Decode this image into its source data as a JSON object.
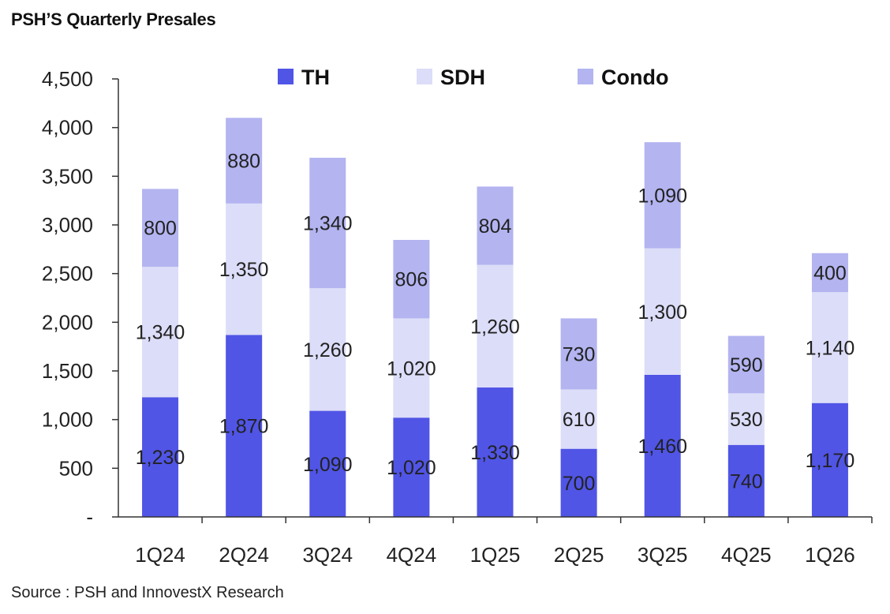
{
  "title": "PSH’S Quarterly Presales",
  "source": "Source : PSH and InnovestX Research",
  "chart_data": {
    "type": "bar",
    "stacked": true,
    "title": "PSH’S Quarterly Presales",
    "xlabel": "",
    "ylabel": "",
    "ylim": [
      0,
      4500
    ],
    "yticks": [
      0,
      500,
      1000,
      1500,
      2000,
      2500,
      3000,
      3500,
      4000,
      4500
    ],
    "ytick_labels": [
      "-",
      "500",
      "1,000",
      "1,500",
      "2,000",
      "2,500",
      "3,000",
      "3,500",
      "4,000",
      "4,500"
    ],
    "grid": false,
    "legend": "top",
    "categories": [
      "1Q24",
      "2Q24",
      "3Q24",
      "4Q24",
      "1Q25",
      "2Q25",
      "3Q25",
      "4Q25",
      "1Q26"
    ],
    "series": [
      {
        "name": "TH",
        "color": "#5055e6",
        "values": [
          1230,
          1870,
          1090,
          1020,
          1330,
          700,
          1460,
          740,
          1170
        ],
        "labels": [
          "1,230",
          "1,870",
          "1,090",
          "1,020",
          "1,330",
          "700",
          "1,460",
          "740",
          "1,170"
        ]
      },
      {
        "name": "SDH",
        "color": "#dcddf8",
        "values": [
          1340,
          1350,
          1260,
          1020,
          1260,
          610,
          1300,
          530,
          1140
        ],
        "labels": [
          "1,340",
          "1,350",
          "1,260",
          "1,020",
          "1,260",
          "610",
          "1,300",
          "530",
          "1,140"
        ]
      },
      {
        "name": "Condo",
        "color": "#b3b4f0",
        "values": [
          800,
          880,
          1340,
          806,
          804,
          730,
          1090,
          590,
          400
        ],
        "labels": [
          "800",
          "880",
          "1,340",
          "806",
          "804",
          "730",
          "1,090",
          "590",
          "400"
        ]
      }
    ]
  }
}
